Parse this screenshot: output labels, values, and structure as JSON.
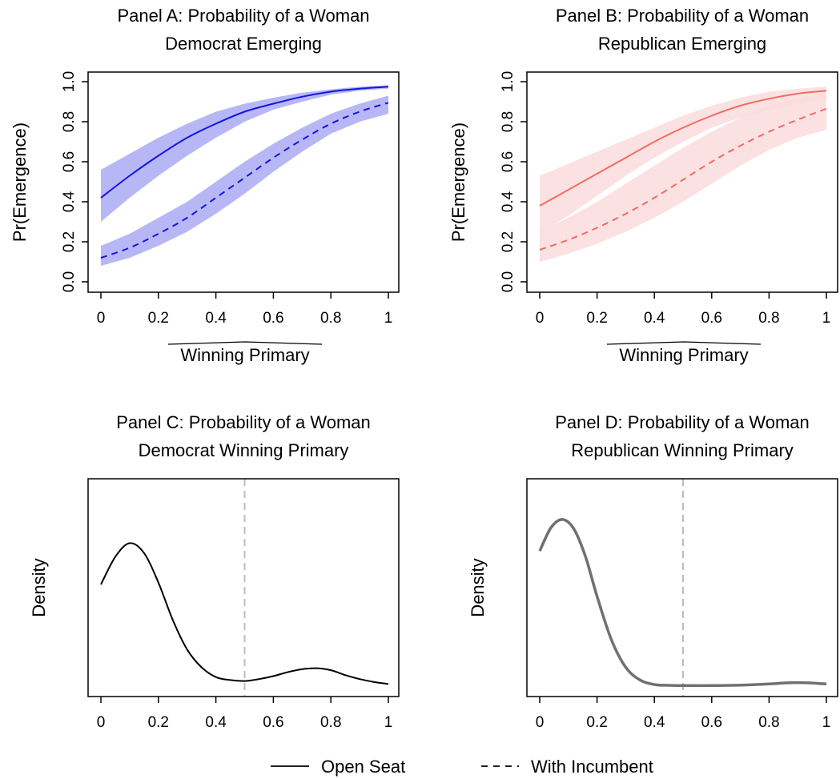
{
  "figure": {
    "legend": {
      "placement": "bottom-center",
      "entries": [
        {
          "label": "Open Seat",
          "linestyle": "solid"
        },
        {
          "label": "With Incumbent",
          "linestyle": "dashed"
        }
      ]
    }
  },
  "chart_data": [
    {
      "id": "A",
      "type": "line",
      "title_lines": [
        "Panel A: Probability of a Woman",
        "Democrat Emerging"
      ],
      "xlabel": "Winning Primary",
      "ylabel": "Pr(Emergence)",
      "xlim": [
        0,
        1
      ],
      "ylim": [
        0,
        1
      ],
      "x_ticks": [
        "0",
        "0.2",
        "0.4",
        "0.6",
        "0.8",
        "1"
      ],
      "y_ticks": [
        "0.0",
        "0.2",
        "0.4",
        "0.6",
        "0.8",
        "1.0"
      ],
      "color": "#1414e6",
      "band_color": "#aaaaf5",
      "x": [
        0,
        0.1,
        0.2,
        0.3,
        0.4,
        0.5,
        0.6,
        0.7,
        0.8,
        0.9,
        1.0
      ],
      "series": [
        {
          "name": "Open Seat",
          "linestyle": "solid",
          "values": [
            0.42,
            0.53,
            0.63,
            0.72,
            0.79,
            0.85,
            0.89,
            0.925,
            0.95,
            0.965,
            0.975
          ],
          "lower": [
            0.3,
            0.42,
            0.53,
            0.63,
            0.72,
            0.8,
            0.86,
            0.9,
            0.935,
            0.955,
            0.965
          ],
          "upper": [
            0.56,
            0.64,
            0.72,
            0.79,
            0.85,
            0.89,
            0.92,
            0.945,
            0.962,
            0.975,
            0.982
          ]
        },
        {
          "name": "With Incumbent",
          "linestyle": "dashed",
          "values": [
            0.12,
            0.17,
            0.24,
            0.32,
            0.42,
            0.52,
            0.62,
            0.71,
            0.79,
            0.85,
            0.895
          ],
          "lower": [
            0.08,
            0.12,
            0.18,
            0.25,
            0.34,
            0.44,
            0.55,
            0.65,
            0.74,
            0.8,
            0.84
          ],
          "upper": [
            0.18,
            0.24,
            0.32,
            0.4,
            0.5,
            0.6,
            0.69,
            0.77,
            0.84,
            0.89,
            0.93
          ]
        }
      ]
    },
    {
      "id": "B",
      "type": "line",
      "title_lines": [
        "Panel B: Probability of a Woman",
        "Republican Emerging"
      ],
      "xlabel": "Winning Primary",
      "ylabel": "Pr(Emergence)",
      "xlim": [
        0,
        1
      ],
      "ylim": [
        0,
        1
      ],
      "x_ticks": [
        "0",
        "0.2",
        "0.4",
        "0.6",
        "0.8",
        "1"
      ],
      "y_ticks": [
        "0.0",
        "0.2",
        "0.4",
        "0.6",
        "0.8",
        "1.0"
      ],
      "color": "#f26c62",
      "band_color": "#fadcdc",
      "x": [
        0,
        0.1,
        0.2,
        0.3,
        0.4,
        0.5,
        0.6,
        0.7,
        0.8,
        0.9,
        1.0
      ],
      "series": [
        {
          "name": "Open Seat",
          "linestyle": "solid",
          "values": [
            0.38,
            0.46,
            0.54,
            0.62,
            0.7,
            0.77,
            0.83,
            0.88,
            0.915,
            0.94,
            0.955
          ],
          "lower": [
            0.24,
            0.33,
            0.43,
            0.53,
            0.62,
            0.7,
            0.77,
            0.82,
            0.86,
            0.89,
            0.91
          ],
          "upper": [
            0.53,
            0.59,
            0.65,
            0.71,
            0.77,
            0.83,
            0.88,
            0.92,
            0.95,
            0.965,
            0.975
          ]
        },
        {
          "name": "With Incumbent",
          "linestyle": "dashed",
          "values": [
            0.16,
            0.21,
            0.27,
            0.34,
            0.42,
            0.51,
            0.6,
            0.68,
            0.75,
            0.81,
            0.865
          ],
          "lower": [
            0.1,
            0.14,
            0.19,
            0.25,
            0.32,
            0.4,
            0.49,
            0.58,
            0.66,
            0.72,
            0.76
          ],
          "upper": [
            0.25,
            0.32,
            0.4,
            0.49,
            0.58,
            0.67,
            0.75,
            0.82,
            0.88,
            0.92,
            0.94
          ]
        }
      ]
    },
    {
      "id": "C",
      "type": "line",
      "title_lines": [
        "Panel C: Probability of a Woman",
        "Democrat  Winning Primary"
      ],
      "xlabel": "",
      "ylabel": "Density",
      "xlim": [
        0,
        1
      ],
      "ylim": [
        0,
        1
      ],
      "x_ticks": [
        "0",
        "0.2",
        "0.4",
        "0.6",
        "0.8",
        "1"
      ],
      "y_ticks": [],
      "reference_line_x": 0.5,
      "color": "#000000",
      "x": [
        0,
        0.05,
        0.1,
        0.15,
        0.2,
        0.25,
        0.3,
        0.35,
        0.4,
        0.45,
        0.5,
        0.55,
        0.6,
        0.65,
        0.7,
        0.75,
        0.8,
        0.85,
        0.9,
        0.95,
        1.0
      ],
      "series": [
        {
          "name": "",
          "linestyle": "solid",
          "values": [
            0.52,
            0.66,
            0.73,
            0.68,
            0.53,
            0.34,
            0.19,
            0.1,
            0.05,
            0.035,
            0.03,
            0.04,
            0.055,
            0.075,
            0.09,
            0.095,
            0.085,
            0.06,
            0.04,
            0.025,
            0.015
          ]
        }
      ]
    },
    {
      "id": "D",
      "type": "line",
      "title_lines": [
        "Panel D: Probability of a Woman",
        "Republican  Winning Primary"
      ],
      "xlabel": "",
      "ylabel": "Density",
      "xlim": [
        0,
        1
      ],
      "ylim": [
        0,
        1
      ],
      "x_ticks": [
        "0",
        "0.2",
        "0.4",
        "0.6",
        "0.8",
        "1"
      ],
      "y_ticks": [],
      "reference_line_x": 0.5,
      "color": "#707070",
      "x": [
        0,
        0.04,
        0.08,
        0.12,
        0.16,
        0.2,
        0.25,
        0.3,
        0.35,
        0.4,
        0.45,
        0.5,
        0.6,
        0.7,
        0.8,
        0.85,
        0.9,
        0.95,
        1.0
      ],
      "series": [
        {
          "name": "",
          "linestyle": "solid",
          "values": [
            0.69,
            0.81,
            0.85,
            0.8,
            0.66,
            0.46,
            0.24,
            0.1,
            0.035,
            0.012,
            0.008,
            0.007,
            0.007,
            0.009,
            0.015,
            0.02,
            0.022,
            0.02,
            0.015
          ]
        }
      ]
    }
  ]
}
